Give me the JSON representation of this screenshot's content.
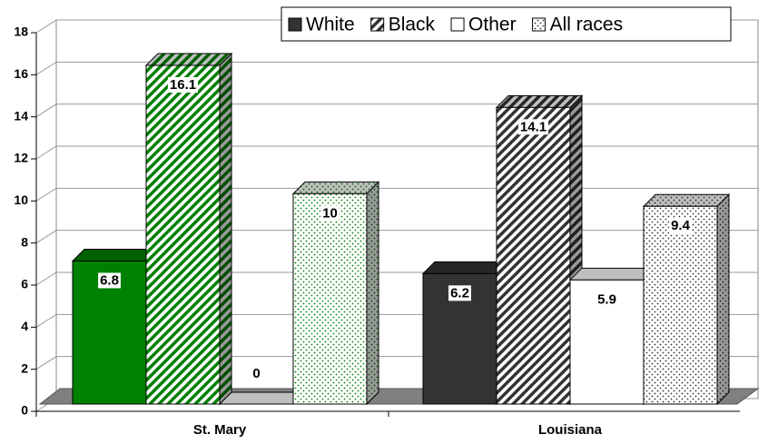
{
  "chart_data": {
    "type": "bar3d",
    "categories": [
      "St. Mary",
      "Louisiana"
    ],
    "category_colors": [
      "#008000",
      "#333333"
    ],
    "series": [
      {
        "name": "White",
        "pattern": "solid",
        "values": [
          6.8,
          6.2
        ]
      },
      {
        "name": "Black",
        "pattern": "hatch",
        "values": [
          16.1,
          14.1
        ]
      },
      {
        "name": "Other",
        "pattern": "empty",
        "values": [
          0,
          5.9
        ]
      },
      {
        "name": "All races",
        "pattern": "dots",
        "values": [
          10,
          9.4
        ]
      }
    ],
    "ylim": [
      0,
      18
    ],
    "yticks": [
      0,
      2,
      4,
      6,
      8,
      10,
      12,
      14,
      16,
      18
    ],
    "grid": true,
    "legend": "top-right"
  }
}
